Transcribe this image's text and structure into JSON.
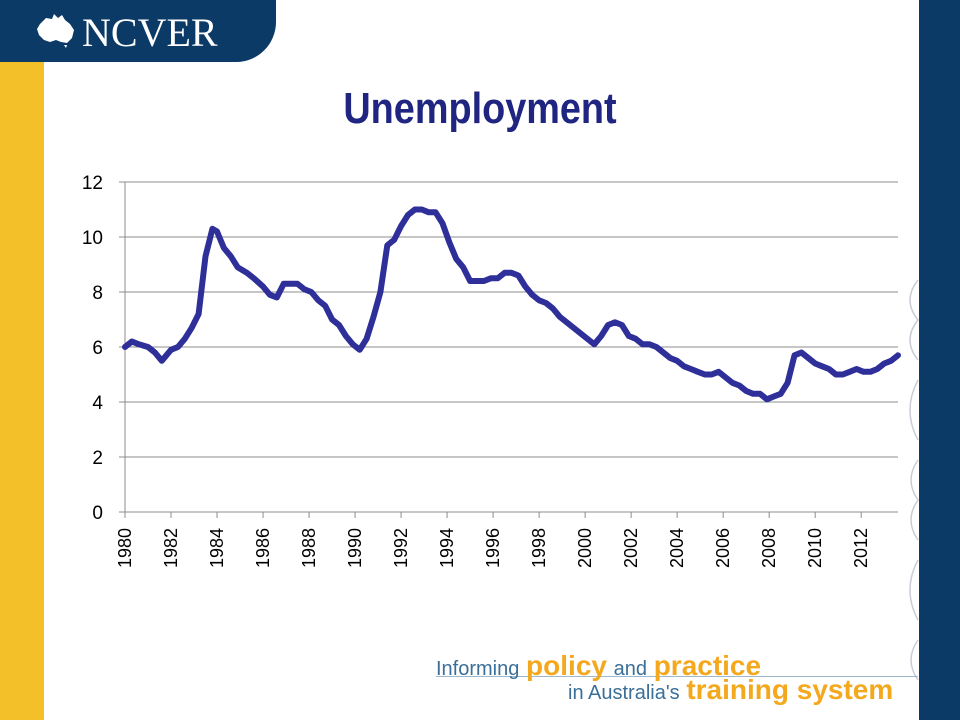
{
  "logo": {
    "text": "NCVER"
  },
  "slide": {
    "title": "Unemployment"
  },
  "tagline": {
    "w1": "Informing",
    "w2": "policy",
    "w3": "and",
    "w4": "practice",
    "w5": "in Australia's",
    "w6": "training system"
  },
  "colors": {
    "line": "#2f2f9a",
    "title": "#1f2580",
    "navy": "#0b3a66",
    "gold": "#f4c02a",
    "grid": "#8c8c8c"
  },
  "chart_data": {
    "type": "line",
    "ylim": [
      0,
      12
    ],
    "yticks": [
      "0",
      "2",
      "4",
      "6",
      "8",
      "10",
      "12"
    ],
    "xticks": [
      "1980",
      "1982",
      "1984",
      "1986",
      "1988",
      "1990",
      "1992",
      "1994",
      "1996",
      "1998",
      "2000",
      "2002",
      "2004",
      "2006",
      "2008",
      "2010",
      "2012"
    ],
    "xlim": [
      1980,
      2013.6
    ],
    "grid": true,
    "series": [
      {
        "x": [
          1980.0,
          1980.3,
          1980.6,
          1981.0,
          1981.3,
          1981.6,
          1982.0,
          1982.3,
          1982.6,
          1982.9,
          1983.2,
          1983.5,
          1983.8,
          1984.0,
          1984.3,
          1984.6,
          1984.9,
          1985.3,
          1985.6,
          1986.0,
          1986.3,
          1986.6,
          1986.9,
          1987.2,
          1987.5,
          1987.8,
          1988.1,
          1988.4,
          1988.7,
          1989.0,
          1989.3,
          1989.6,
          1989.9,
          1990.2,
          1990.5,
          1990.8,
          1991.1,
          1991.4,
          1991.7,
          1992.0,
          1992.3,
          1992.6,
          1992.9,
          1993.2,
          1993.5,
          1993.8,
          1994.1,
          1994.4,
          1994.7,
          1995.0,
          1995.3,
          1995.6,
          1995.9,
          1996.2,
          1996.5,
          1996.8,
          1997.1,
          1997.4,
          1997.7,
          1998.0,
          1998.3,
          1998.6,
          1998.9,
          1999.2,
          1999.5,
          1999.8,
          2000.1,
          2000.4,
          2000.7,
          2001.0,
          2001.3,
          2001.6,
          2001.9,
          2002.2,
          2002.5,
          2002.8,
          2003.1,
          2003.4,
          2003.7,
          2004.0,
          2004.3,
          2004.6,
          2004.9,
          2005.2,
          2005.5,
          2005.8,
          2006.1,
          2006.4,
          2006.7,
          2007.0,
          2007.3,
          2007.6,
          2007.9,
          2008.2,
          2008.5,
          2008.8,
          2009.1,
          2009.4,
          2009.7,
          2010.0,
          2010.3,
          2010.6,
          2010.9,
          2011.2,
          2011.5,
          2011.8,
          2012.1,
          2012.4,
          2012.7,
          2013.0,
          2013.3,
          2013.6
        ],
        "y": [
          6.0,
          6.2,
          6.1,
          6.0,
          5.8,
          5.5,
          5.9,
          6.0,
          6.3,
          6.7,
          7.2,
          9.3,
          10.3,
          10.2,
          9.6,
          9.3,
          8.9,
          8.7,
          8.5,
          8.2,
          7.9,
          7.8,
          8.3,
          8.3,
          8.3,
          8.1,
          8.0,
          7.7,
          7.5,
          7.0,
          6.8,
          6.4,
          6.1,
          5.9,
          6.3,
          7.1,
          8.0,
          9.7,
          9.9,
          10.4,
          10.8,
          11.0,
          11.0,
          10.9,
          10.9,
          10.5,
          9.8,
          9.2,
          8.9,
          8.4,
          8.4,
          8.4,
          8.5,
          8.5,
          8.7,
          8.7,
          8.6,
          8.2,
          7.9,
          7.7,
          7.6,
          7.4,
          7.1,
          6.9,
          6.7,
          6.5,
          6.3,
          6.1,
          6.4,
          6.8,
          6.9,
          6.8,
          6.4,
          6.3,
          6.1,
          6.1,
          6.0,
          5.8,
          5.6,
          5.5,
          5.3,
          5.2,
          5.1,
          5.0,
          5.0,
          5.1,
          4.9,
          4.7,
          4.6,
          4.4,
          4.3,
          4.3,
          4.1,
          4.2,
          4.3,
          4.7,
          5.7,
          5.8,
          5.6,
          5.4,
          5.3,
          5.2,
          5.0,
          5.0,
          5.1,
          5.2,
          5.1,
          5.1,
          5.2,
          5.4,
          5.5,
          5.7
        ]
      }
    ]
  }
}
